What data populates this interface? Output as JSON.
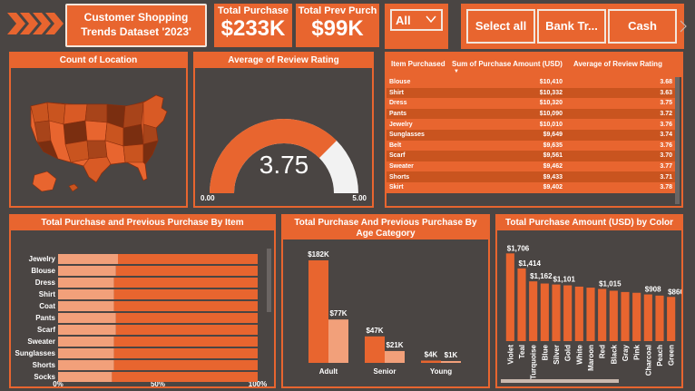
{
  "header": {
    "title_line1": "Customer Shopping",
    "title_line2": "Trends Dataset '2023'",
    "kpi1_label": "Total Purchase",
    "kpi1_value": "$233K",
    "kpi2_label": "Total Prev Purch",
    "kpi2_value": "$99K",
    "dropdown_value": "All",
    "slicer_buttons": [
      "Select all",
      "Bank Tr...",
      "Cash"
    ]
  },
  "map_panel": {
    "title": "Count of Location"
  },
  "gauge": {
    "title": "Average of Review Rating",
    "value": "3.75",
    "numeric_value": 3.75,
    "min_label": "0.00",
    "max_label": "5.00",
    "min": 0,
    "max": 5
  },
  "table": {
    "headers": [
      "Item Purchased",
      "Sum of Purchase Amount (USD)",
      "Average of Review Rating"
    ],
    "rows": [
      [
        "Blouse",
        "$10,410",
        "3.68"
      ],
      [
        "Shirt",
        "$10,332",
        "3.63"
      ],
      [
        "Dress",
        "$10,320",
        "3.75"
      ],
      [
        "Pants",
        "$10,090",
        "3.72"
      ],
      [
        "Jewelry",
        "$10,010",
        "3.76"
      ],
      [
        "Sunglasses",
        "$9,649",
        "3.74"
      ],
      [
        "Belt",
        "$9,635",
        "3.76"
      ],
      [
        "Scarf",
        "$9,561",
        "3.70"
      ],
      [
        "Sweater",
        "$9,462",
        "3.77"
      ],
      [
        "Shorts",
        "$9,433",
        "3.71"
      ],
      [
        "Skirt",
        "$9,402",
        "3.78"
      ]
    ]
  },
  "chart_data": [
    {
      "type": "bar",
      "orientation": "horizontal",
      "stacked": "100%",
      "title": "Total Purchase and Previous Purchase By Item",
      "categories": [
        "Jewelry",
        "Blouse",
        "Dress",
        "Shirt",
        "Coat",
        "Pants",
        "Scarf",
        "Sweater",
        "Sunglasses",
        "Shorts",
        "Socks"
      ],
      "series": [
        {
          "values": [
            0.3,
            0.29,
            0.28,
            0.28,
            0.28,
            0.29,
            0.29,
            0.28,
            0.28,
            0.28,
            0.27
          ],
          "color": "#f2a07a"
        },
        {
          "values": [
            0.7,
            0.71,
            0.72,
            0.72,
            0.72,
            0.71,
            0.71,
            0.72,
            0.72,
            0.72,
            0.73
          ],
          "color": "#e8652f"
        }
      ],
      "x_ticks": [
        "0%",
        "50%",
        "100%"
      ],
      "xlim": [
        0,
        1
      ]
    },
    {
      "type": "bar",
      "title": "Total Purchase And Previous Purchase By Age Category",
      "categories": [
        "Adult",
        "Senior",
        "Young"
      ],
      "series": [
        {
          "values": [
            182,
            47,
            4
          ],
          "labels": [
            "$182K",
            "$47K",
            "$4K"
          ],
          "color": "#e8652f"
        },
        {
          "values": [
            77,
            21,
            1
          ],
          "labels": [
            "$77K",
            "$21K",
            "$1K"
          ],
          "color": "#f2a07a"
        }
      ],
      "ylim": [
        0,
        190
      ]
    },
    {
      "type": "bar",
      "title": "Total Purchase Amount (USD) by Color",
      "categories": [
        "Violet",
        "Teal",
        "Turquoise",
        "Blue",
        "Silver",
        "Gold",
        "White",
        "Maroon",
        "Red",
        "Black",
        "Gray",
        "Pink",
        "Charcoal",
        "Peach",
        "Green"
      ],
      "values": [
        1706,
        1414,
        1162,
        1120,
        1101,
        1085,
        1060,
        1040,
        1015,
        980,
        955,
        940,
        908,
        885,
        860
      ],
      "data_labels": {
        "0": "$1,706",
        "1": "$1,414",
        "2": "$1,162",
        "4": "$1,101",
        "8": "$1,015",
        "12": "$908",
        "14": "$860"
      },
      "ylim": [
        0,
        1800
      ],
      "color": "#e8652f"
    }
  ]
}
